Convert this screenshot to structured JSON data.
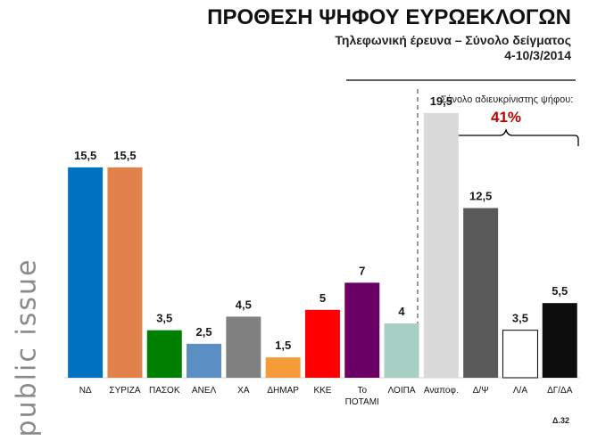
{
  "brand": "public issue",
  "header": {
    "title": "ΠΡΟΘΕΣΗ ΨΗΦΟΥ ΕΥΡΩΕΚΛΟΓΩΝ",
    "subtitle": "Τηλεφωνική έρευνα – Σύνολο δείγματος",
    "date": "4-10/3/2014"
  },
  "page_number": "Δ.32",
  "chart_data": {
    "type": "bar",
    "categories": [
      "ΝΔ",
      "ΣΥΡΙΖΑ",
      "ΠΑΣΟΚ",
      "ΑΝΕΛ",
      "ΧΑ",
      "ΔΗΜΑΡ",
      "ΚΚΕ",
      "Το ΠΟΤΑΜΙ",
      "ΛΟΙΠΑ",
      "Αναποφ.",
      "Δ/Ψ",
      "Λ/Α",
      "ΔΓ/ΔΑ"
    ],
    "values": [
      15.5,
      15.5,
      3.5,
      2.5,
      4.5,
      1.5,
      5,
      7,
      4,
      19.5,
      12.5,
      3.5,
      5.5
    ],
    "value_labels": [
      "15,5",
      "15,5",
      "3,5",
      "2,5",
      "4,5",
      "1,5",
      "5",
      "7",
      "4",
      "19,5",
      "12,5",
      "3,5",
      "5,5"
    ],
    "colors": [
      "#0070c0",
      "#e0824a",
      "#008000",
      "#5b8ec3",
      "#808080",
      "#f79b3a",
      "#ff0000",
      "#6a0066",
      "#a8cfc3",
      "#d9d9d9",
      "#595959",
      "#ffffff",
      "#0d0d0d"
    ],
    "ylim": [
      0,
      21
    ],
    "grid": false,
    "annotation": {
      "label": "Σύνολο αδιευκρίνιστης ψήφου:",
      "value": "41%",
      "value_color": "#c00000"
    }
  }
}
